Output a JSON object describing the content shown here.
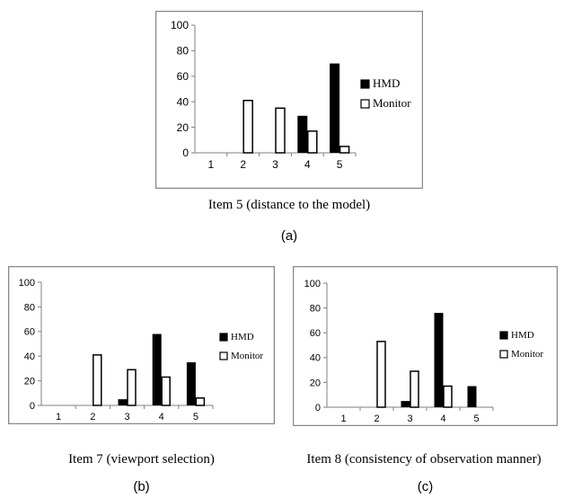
{
  "chart_data": [
    {
      "type": "bar",
      "categories": [
        "1",
        "2",
        "3",
        "4",
        "5"
      ],
      "series": [
        {
          "name": "HMD",
          "values": [
            0,
            0,
            0,
            29,
            70
          ],
          "color": "#000000"
        },
        {
          "name": "Monitor",
          "values": [
            0,
            41,
            35,
            17,
            5
          ],
          "color": "#ffffff"
        }
      ],
      "yticks": [
        "0",
        "20",
        "40",
        "60",
        "80",
        "100"
      ],
      "ylim": [
        0,
        100
      ],
      "legend": "right",
      "grid": false
    },
    {
      "type": "bar",
      "categories": [
        "1",
        "2",
        "3",
        "4",
        "5"
      ],
      "series": [
        {
          "name": "HMD",
          "values": [
            0,
            0,
            5,
            58,
            35
          ],
          "color": "#000000"
        },
        {
          "name": "Monitor",
          "values": [
            0,
            41,
            29,
            23,
            6
          ],
          "color": "#ffffff"
        }
      ],
      "yticks": [
        "0",
        "20",
        "40",
        "60",
        "80",
        "100"
      ],
      "ylim": [
        0,
        100
      ],
      "legend": "right",
      "grid": false
    },
    {
      "type": "bar",
      "categories": [
        "1",
        "2",
        "3",
        "4",
        "5"
      ],
      "series": [
        {
          "name": "HMD",
          "values": [
            0,
            0,
            5,
            76,
            17
          ],
          "color": "#000000"
        },
        {
          "name": "Monitor",
          "values": [
            0,
            53,
            29,
            17,
            0
          ],
          "color": "#ffffff"
        }
      ],
      "yticks": [
        "0",
        "20",
        "40",
        "60",
        "80",
        "100"
      ],
      "ylim": [
        0,
        100
      ],
      "legend": "right",
      "grid": false
    }
  ],
  "captions": {
    "a": "Item 5 (distance to the model)",
    "b": "Item 7 (viewport selection)",
    "c": "Item 8 (consistency of observation manner)"
  },
  "sublabels": {
    "a": "(a)",
    "b": "(b)",
    "c": "(c)"
  }
}
